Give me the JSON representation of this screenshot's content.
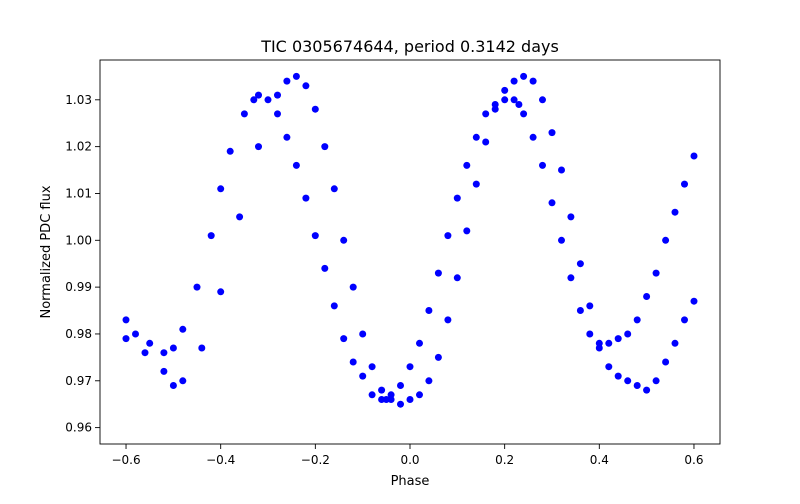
{
  "chart_data": {
    "type": "scatter",
    "title": "TIC 0305674644, period 0.3142 days",
    "xlabel": "Phase",
    "ylabel": "Normalized PDC flux",
    "xlim": [
      -0.655,
      0.655
    ],
    "ylim": [
      0.9565,
      1.0385
    ],
    "xticks": [
      -0.6,
      -0.4,
      -0.2,
      0.0,
      0.2,
      0.4,
      0.6
    ],
    "xtick_labels": [
      "−0.6",
      "−0.4",
      "−0.2",
      "0.0",
      "0.2",
      "0.4",
      "0.6"
    ],
    "yticks": [
      0.96,
      0.97,
      0.98,
      0.99,
      1.0,
      1.01,
      1.02,
      1.03
    ],
    "ytick_labels": [
      "0.96",
      "0.97",
      "0.98",
      "0.99",
      "1.00",
      "1.01",
      "1.02",
      "1.03"
    ],
    "grid": false,
    "marker_color": "#0000ff",
    "series": [
      {
        "x": [
          -0.6,
          -0.58,
          -0.55,
          -0.52,
          -0.5,
          -0.48,
          -0.45,
          -0.42,
          -0.4,
          -0.38,
          -0.35,
          -0.33,
          -0.32,
          -0.3,
          -0.28,
          -0.26,
          -0.24,
          -0.22,
          -0.2,
          -0.18,
          -0.16,
          -0.14,
          -0.12,
          -0.1,
          -0.08,
          -0.06,
          -0.05,
          -0.04,
          -0.02,
          0.0,
          0.02,
          0.04,
          0.06,
          0.08,
          0.1,
          0.12,
          0.14,
          0.16,
          0.18,
          0.2,
          0.22,
          0.23,
          0.24,
          0.26,
          0.28,
          0.3,
          0.32,
          0.34,
          0.36,
          0.38,
          0.4,
          0.42,
          0.44,
          0.46,
          0.48,
          0.5,
          0.52,
          0.54,
          0.56,
          0.58,
          0.6
        ],
        "y": [
          0.983,
          0.98,
          0.978,
          0.976,
          0.977,
          0.981,
          0.99,
          1.001,
          1.011,
          1.019,
          1.027,
          1.03,
          1.031,
          1.03,
          1.027,
          1.022,
          1.016,
          1.009,
          1.001,
          0.994,
          0.986,
          0.979,
          0.974,
          0.971,
          0.967,
          0.966,
          0.966,
          0.967,
          0.969,
          0.973,
          0.978,
          0.985,
          0.993,
          1.001,
          1.009,
          1.016,
          1.022,
          1.027,
          1.029,
          1.03,
          1.03,
          1.029,
          1.027,
          1.022,
          1.016,
          1.008,
          1.0,
          0.992,
          0.985,
          0.98,
          0.977,
          0.978,
          0.979,
          0.98,
          0.983,
          0.988,
          0.993,
          1.0,
          1.006,
          1.012,
          1.018
        ]
      },
      {
        "x": [
          -0.6,
          -0.56,
          -0.52,
          -0.5,
          -0.48,
          -0.44,
          -0.4,
          -0.36,
          -0.32,
          -0.28,
          -0.26,
          -0.24,
          -0.22,
          -0.2,
          -0.18,
          -0.16,
          -0.14,
          -0.12,
          -0.1,
          -0.08,
          -0.06,
          -0.04,
          -0.02,
          0.0,
          0.02,
          0.04,
          0.06,
          0.08,
          0.1,
          0.12,
          0.14,
          0.16,
          0.18,
          0.2,
          0.22,
          0.24,
          0.26,
          0.28,
          0.3,
          0.32,
          0.34,
          0.36,
          0.38,
          0.4,
          0.42,
          0.44,
          0.46,
          0.48,
          0.5,
          0.52,
          0.54,
          0.56,
          0.58,
          0.6
        ],
        "y": [
          0.979,
          0.976,
          0.972,
          0.969,
          0.97,
          0.977,
          0.989,
          1.005,
          1.02,
          1.031,
          1.034,
          1.035,
          1.033,
          1.028,
          1.02,
          1.011,
          1.0,
          0.99,
          0.98,
          0.973,
          0.968,
          0.966,
          0.965,
          0.966,
          0.967,
          0.97,
          0.975,
          0.983,
          0.992,
          1.002,
          1.012,
          1.021,
          1.028,
          1.032,
          1.034,
          1.035,
          1.034,
          1.03,
          1.023,
          1.015,
          1.005,
          0.995,
          0.986,
          0.978,
          0.973,
          0.971,
          0.97,
          0.969,
          0.968,
          0.97,
          0.974,
          0.978,
          0.983,
          0.987
        ]
      }
    ]
  }
}
